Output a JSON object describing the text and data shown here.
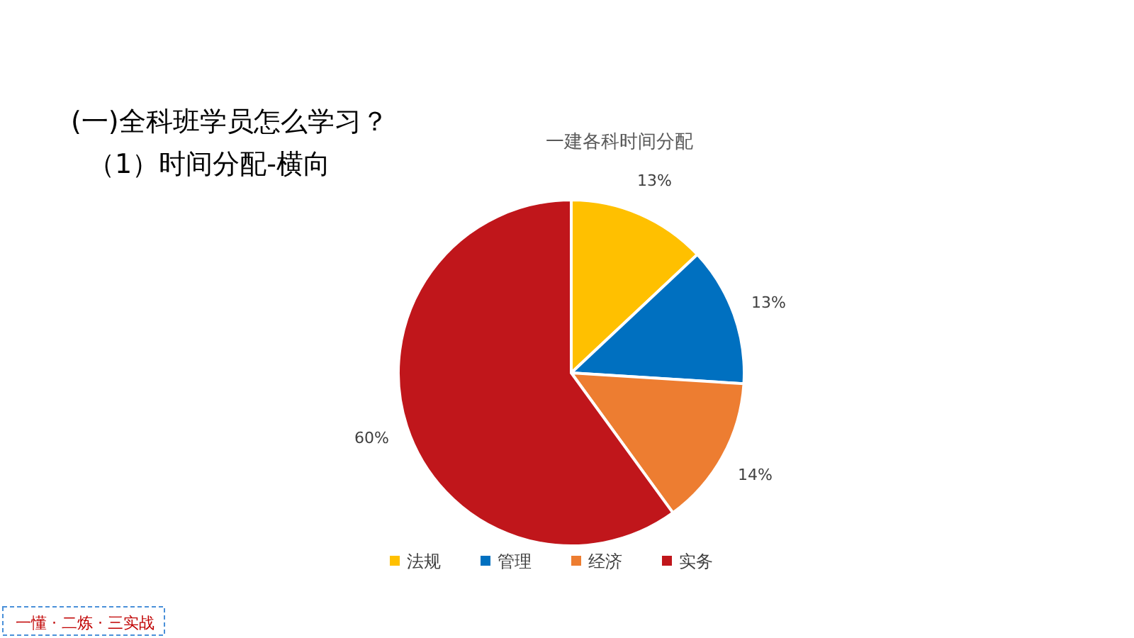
{
  "chart_data": {
    "type": "pie",
    "title": "一建各科时间分配",
    "categories": [
      "法规",
      "管理",
      "经济",
      "实务"
    ],
    "values": [
      13,
      13,
      14,
      60
    ],
    "value_labels": [
      "13%",
      "13%",
      "14%",
      "60%"
    ],
    "colors": [
      "#ffc000",
      "#0070c0",
      "#ed7d31",
      "#c0161b"
    ],
    "legend": "bottom",
    "annotations": [
      "(一)全科班学员怎么学习？",
      "（1）时间分配-横向",
      "一懂 · 二炼 · 三实战"
    ]
  }
}
